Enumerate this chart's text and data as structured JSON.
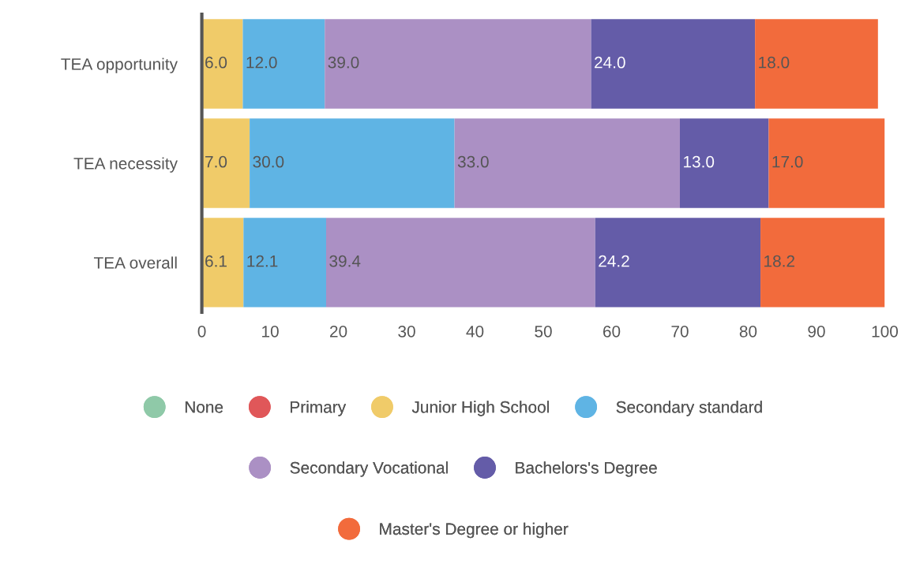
{
  "chart_data": {
    "type": "bar",
    "orientation": "horizontal",
    "stacked": true,
    "categories": [
      "TEA opportunity",
      "TEA necessity",
      "TEA overall"
    ],
    "series": [
      {
        "name": "None",
        "color": "#8fc9a8",
        "values": [
          0,
          0,
          0
        ],
        "value_labels": [
          null,
          null,
          null
        ]
      },
      {
        "name": "Primary",
        "color": "#e05759",
        "values": [
          0,
          0,
          0
        ],
        "value_labels": [
          null,
          null,
          null
        ]
      },
      {
        "name": "Junior High School",
        "color": "#f0cb69",
        "values": [
          6.0,
          7.0,
          6.1
        ],
        "value_labels": [
          "6.0",
          "7.0",
          "6.1"
        ]
      },
      {
        "name": "Secondary standard",
        "color": "#5fb4e4",
        "values": [
          12.0,
          30.0,
          12.1
        ],
        "value_labels": [
          "12.0",
          "30.0",
          "12.1"
        ]
      },
      {
        "name": "Secondary Vocational",
        "color": "#ab90c4",
        "values": [
          39.0,
          33.0,
          39.4
        ],
        "value_labels": [
          "39.0",
          "33.0",
          "39.4"
        ]
      },
      {
        "name": "Bachelors's Degree",
        "color": "#645ca8",
        "values": [
          24.0,
          13.0,
          24.2
        ],
        "value_labels": [
          "24.0",
          "13.0",
          "24.2"
        ]
      },
      {
        "name": "Master's Degree or higher",
        "color": "#f26b3c",
        "values": [
          18.0,
          17.0,
          18.2
        ],
        "value_labels": [
          "18.0",
          "17.0",
          "18.2"
        ]
      }
    ],
    "xlim": [
      0,
      100
    ],
    "xticks": [
      0,
      10,
      20,
      30,
      40,
      50,
      60,
      70,
      80,
      90,
      100
    ],
    "grid": false,
    "legend": "bottom"
  }
}
